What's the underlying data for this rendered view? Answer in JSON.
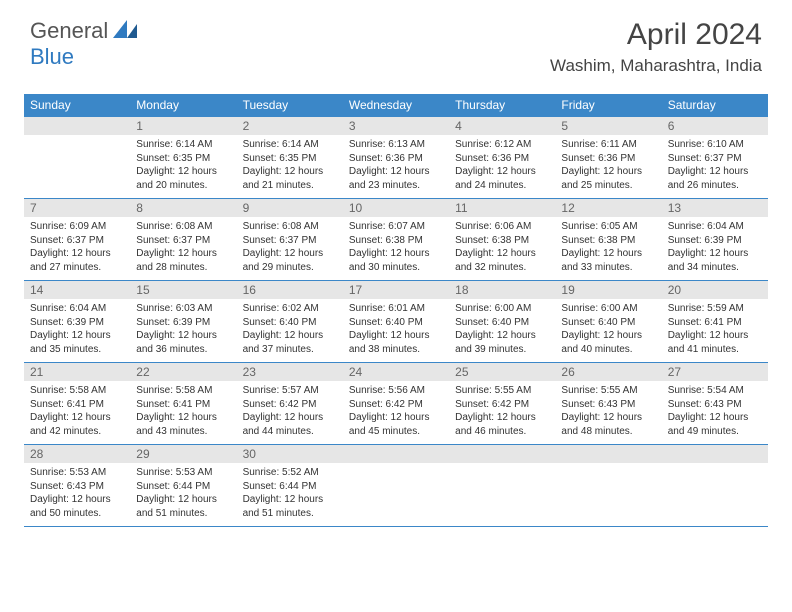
{
  "logo": {
    "part1": "General",
    "part2": "Blue"
  },
  "title": "April 2024",
  "location": "Washim, Maharashtra, India",
  "colors": {
    "header_bg": "#3b87c8",
    "daynum_bg": "#e6e6e6",
    "text": "#333333",
    "logo_gray": "#555555",
    "logo_blue": "#2f7ac0"
  },
  "day_names": [
    "Sunday",
    "Monday",
    "Tuesday",
    "Wednesday",
    "Thursday",
    "Friday",
    "Saturday"
  ],
  "weeks": [
    [
      {
        "day": null
      },
      {
        "day": "1",
        "sunrise": "6:14 AM",
        "sunset": "6:35 PM",
        "daylight": "12 hours and 20 minutes."
      },
      {
        "day": "2",
        "sunrise": "6:14 AM",
        "sunset": "6:35 PM",
        "daylight": "12 hours and 21 minutes."
      },
      {
        "day": "3",
        "sunrise": "6:13 AM",
        "sunset": "6:36 PM",
        "daylight": "12 hours and 23 minutes."
      },
      {
        "day": "4",
        "sunrise": "6:12 AM",
        "sunset": "6:36 PM",
        "daylight": "12 hours and 24 minutes."
      },
      {
        "day": "5",
        "sunrise": "6:11 AM",
        "sunset": "6:36 PM",
        "daylight": "12 hours and 25 minutes."
      },
      {
        "day": "6",
        "sunrise": "6:10 AM",
        "sunset": "6:37 PM",
        "daylight": "12 hours and 26 minutes."
      }
    ],
    [
      {
        "day": "7",
        "sunrise": "6:09 AM",
        "sunset": "6:37 PM",
        "daylight": "12 hours and 27 minutes."
      },
      {
        "day": "8",
        "sunrise": "6:08 AM",
        "sunset": "6:37 PM",
        "daylight": "12 hours and 28 minutes."
      },
      {
        "day": "9",
        "sunrise": "6:08 AM",
        "sunset": "6:37 PM",
        "daylight": "12 hours and 29 minutes."
      },
      {
        "day": "10",
        "sunrise": "6:07 AM",
        "sunset": "6:38 PM",
        "daylight": "12 hours and 30 minutes."
      },
      {
        "day": "11",
        "sunrise": "6:06 AM",
        "sunset": "6:38 PM",
        "daylight": "12 hours and 32 minutes."
      },
      {
        "day": "12",
        "sunrise": "6:05 AM",
        "sunset": "6:38 PM",
        "daylight": "12 hours and 33 minutes."
      },
      {
        "day": "13",
        "sunrise": "6:04 AM",
        "sunset": "6:39 PM",
        "daylight": "12 hours and 34 minutes."
      }
    ],
    [
      {
        "day": "14",
        "sunrise": "6:04 AM",
        "sunset": "6:39 PM",
        "daylight": "12 hours and 35 minutes."
      },
      {
        "day": "15",
        "sunrise": "6:03 AM",
        "sunset": "6:39 PM",
        "daylight": "12 hours and 36 minutes."
      },
      {
        "day": "16",
        "sunrise": "6:02 AM",
        "sunset": "6:40 PM",
        "daylight": "12 hours and 37 minutes."
      },
      {
        "day": "17",
        "sunrise": "6:01 AM",
        "sunset": "6:40 PM",
        "daylight": "12 hours and 38 minutes."
      },
      {
        "day": "18",
        "sunrise": "6:00 AM",
        "sunset": "6:40 PM",
        "daylight": "12 hours and 39 minutes."
      },
      {
        "day": "19",
        "sunrise": "6:00 AM",
        "sunset": "6:40 PM",
        "daylight": "12 hours and 40 minutes."
      },
      {
        "day": "20",
        "sunrise": "5:59 AM",
        "sunset": "6:41 PM",
        "daylight": "12 hours and 41 minutes."
      }
    ],
    [
      {
        "day": "21",
        "sunrise": "5:58 AM",
        "sunset": "6:41 PM",
        "daylight": "12 hours and 42 minutes."
      },
      {
        "day": "22",
        "sunrise": "5:58 AM",
        "sunset": "6:41 PM",
        "daylight": "12 hours and 43 minutes."
      },
      {
        "day": "23",
        "sunrise": "5:57 AM",
        "sunset": "6:42 PM",
        "daylight": "12 hours and 44 minutes."
      },
      {
        "day": "24",
        "sunrise": "5:56 AM",
        "sunset": "6:42 PM",
        "daylight": "12 hours and 45 minutes."
      },
      {
        "day": "25",
        "sunrise": "5:55 AM",
        "sunset": "6:42 PM",
        "daylight": "12 hours and 46 minutes."
      },
      {
        "day": "26",
        "sunrise": "5:55 AM",
        "sunset": "6:43 PM",
        "daylight": "12 hours and 48 minutes."
      },
      {
        "day": "27",
        "sunrise": "5:54 AM",
        "sunset": "6:43 PM",
        "daylight": "12 hours and 49 minutes."
      }
    ],
    [
      {
        "day": "28",
        "sunrise": "5:53 AM",
        "sunset": "6:43 PM",
        "daylight": "12 hours and 50 minutes."
      },
      {
        "day": "29",
        "sunrise": "5:53 AM",
        "sunset": "6:44 PM",
        "daylight": "12 hours and 51 minutes."
      },
      {
        "day": "30",
        "sunrise": "5:52 AM",
        "sunset": "6:44 PM",
        "daylight": "12 hours and 51 minutes."
      },
      {
        "day": null
      },
      {
        "day": null
      },
      {
        "day": null
      },
      {
        "day": null
      }
    ]
  ],
  "labels": {
    "sunrise": "Sunrise:",
    "sunset": "Sunset:",
    "daylight": "Daylight:"
  }
}
